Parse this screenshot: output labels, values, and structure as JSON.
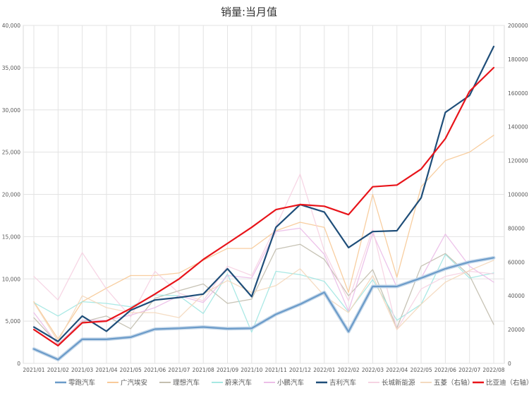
{
  "chart_data": {
    "type": "line",
    "title": "销量:当月值",
    "categories": [
      "2021/01",
      "2021/02",
      "2021/03",
      "2021/04",
      "2021/05",
      "2021/06",
      "2021/07",
      "2021/08",
      "2021/09",
      "2021/10",
      "2021/11",
      "2021/12",
      "2022/01",
      "2022/02",
      "2022/03",
      "2022/04",
      "2022/05",
      "2022/06",
      "2022/07",
      "2022/08"
    ],
    "y_left": {
      "min": 0,
      "max": 40000,
      "step": 5000,
      "tick_labels": [
        "0",
        "5,000",
        "10,000",
        "15,000",
        "20,000",
        "25,000",
        "30,000",
        "35,000",
        "40,000"
      ]
    },
    "y_right": {
      "min": 0,
      "max": 200000,
      "step": 20000,
      "tick_labels": [
        "0",
        "20000",
        "40000",
        "60000",
        "80000",
        "100000",
        "120000",
        "140000",
        "160000",
        "180000",
        "200000"
      ]
    },
    "grid": true,
    "legend_position": "bottom",
    "series": [
      {
        "name": "零跑汽车",
        "axis": "left",
        "color": "#6b9bc9",
        "emphasis": "strong",
        "values": [
          1700,
          450,
          2850,
          2850,
          3100,
          4050,
          4150,
          4300,
          4100,
          4150,
          5800,
          7000,
          8400,
          3750,
          9100,
          9100,
          10100,
          11200,
          12000,
          12500
        ]
      },
      {
        "name": "广汽埃安",
        "axis": "left",
        "color": "#f7c58f",
        "emphasis": "faint",
        "values": [
          7300,
          2900,
          7300,
          8900,
          10400,
          10400,
          10700,
          12200,
          13600,
          13600,
          15700,
          16700,
          16100,
          8400,
          20000,
          10200,
          20900,
          24000,
          25000,
          27000
        ]
      },
      {
        "name": "理想汽车",
        "axis": "left",
        "color": "#bdb8a8",
        "emphasis": "faint",
        "values": [
          5400,
          2300,
          4900,
          5600,
          4100,
          7700,
          8600,
          9400,
          7100,
          7600,
          13500,
          14100,
          12300,
          8000,
          11100,
          4200,
          11500,
          13000,
          10400,
          4600
        ]
      },
      {
        "name": "蔚来汽车",
        "axis": "left",
        "color": "#9ce5e0",
        "emphasis": "faint",
        "values": [
          7200,
          5600,
          7300,
          7100,
          6700,
          8100,
          8000,
          5900,
          10600,
          3700,
          10900,
          10500,
          9700,
          6100,
          9900,
          5100,
          7000,
          12900,
          10100,
          10700
        ]
      },
      {
        "name": "小鹏汽车",
        "axis": "left",
        "color": "#eab8e6",
        "emphasis": "faint",
        "values": [
          6000,
          2200,
          5100,
          5100,
          5700,
          6600,
          8000,
          7200,
          10400,
          10100,
          15600,
          16000,
          12900,
          6200,
          15400,
          9000,
          10100,
          15300,
          11500,
          9600
        ]
      },
      {
        "name": "吉利汽车",
        "axis": "left",
        "color": "#1f4e79",
        "emphasis": "strong",
        "values": [
          4300,
          2600,
          5600,
          3800,
          6300,
          7500,
          7800,
          8200,
          11200,
          7900,
          16100,
          18800,
          17900,
          13700,
          15600,
          15700,
          19600,
          29700,
          31700,
          37500
        ]
      },
      {
        "name": "长城新能源",
        "axis": "left",
        "color": "#f6cfe0",
        "emphasis": "faint",
        "values": [
          10300,
          7500,
          13100,
          8800,
          5500,
          10900,
          8300,
          7400,
          11500,
          10400,
          16200,
          22400,
          13300,
          7400,
          15900,
          4000,
          8800,
          10300,
          10900,
          10600
        ]
      },
      {
        "name": "五菱（右轴）",
        "axis": "right",
        "color": "#f3d6b9",
        "emphasis": "faint",
        "values": [
          36000,
          13000,
          40000,
          33000,
          30000,
          30000,
          27000,
          41000,
          49000,
          42000,
          46000,
          56000,
          40000,
          30000,
          52000,
          20000,
          35000,
          48000,
          55000,
          61000
        ]
      },
      {
        "name": "比亚迪（右轴）",
        "axis": "right",
        "color": "#e8141a",
        "emphasis": "strong",
        "values": [
          20000,
          10500,
          24000,
          25000,
          32500,
          41000,
          50000,
          61500,
          71000,
          80500,
          91000,
          94000,
          93000,
          88000,
          104500,
          105500,
          115000,
          133000,
          161000,
          175000
        ]
      }
    ]
  }
}
